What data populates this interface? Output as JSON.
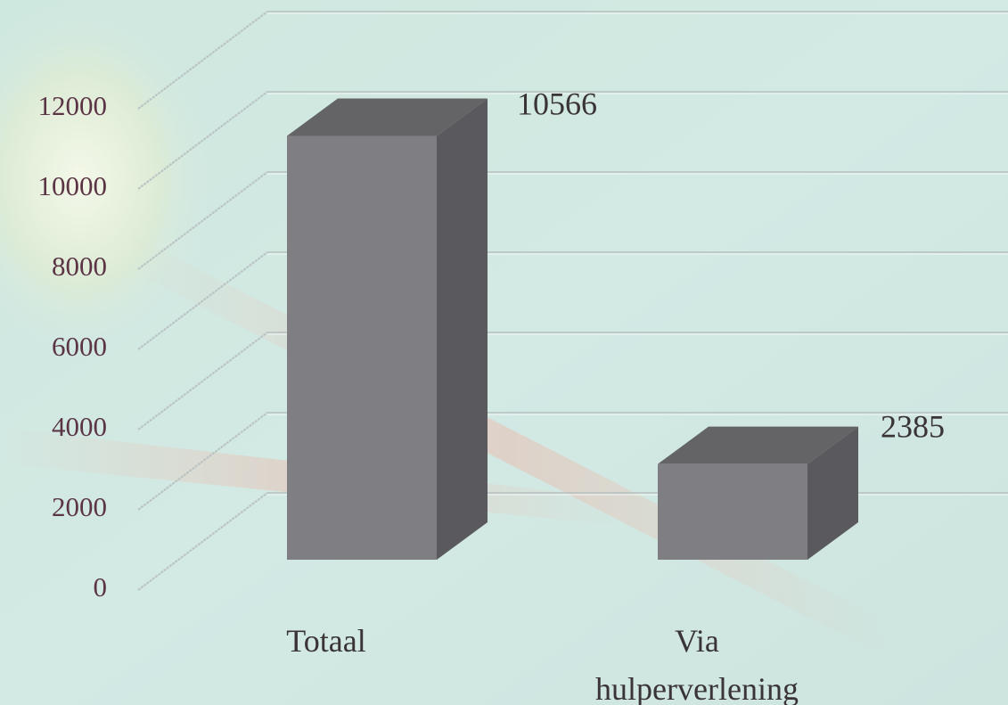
{
  "chart_data": {
    "type": "bar3d",
    "categories": [
      "Totaal",
      "Via hulperverlening"
    ],
    "values": [
      10566,
      2385
    ],
    "color": "#7f7e83",
    "ylim": [
      0,
      12000
    ],
    "yticks": [
      0,
      2000,
      4000,
      6000,
      8000,
      10000,
      12000
    ],
    "grid": true
  }
}
